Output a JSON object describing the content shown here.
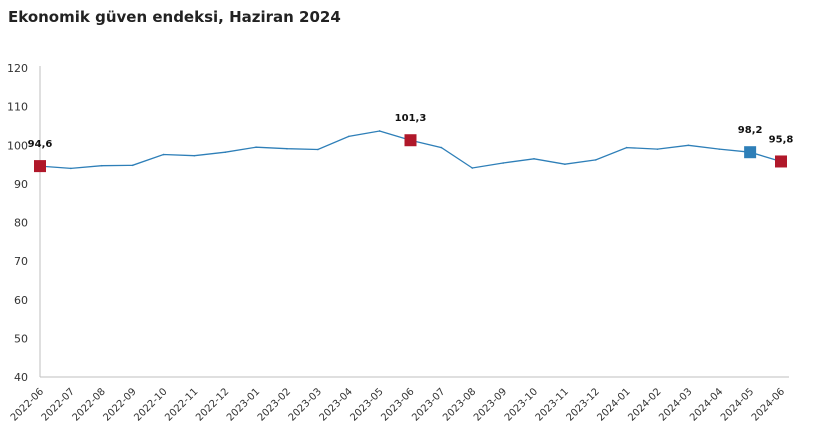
{
  "title": "Ekonomik güven endeksi, Haziran 2024",
  "colors": {
    "line": "#2e7fb8",
    "marker_highlight": "#b0182a",
    "marker_prev": "#2e7fb8",
    "axis": "#bfbfbf"
  },
  "chart_data": {
    "type": "line",
    "title": "Ekonomik güven endeksi, Haziran 2024",
    "xlabel": "",
    "ylabel": "",
    "ylim": [
      40,
      120
    ],
    "yticks": [
      40,
      50,
      60,
      70,
      80,
      90,
      100,
      110,
      120
    ],
    "grid": false,
    "categories": [
      "2022-06",
      "2022-07",
      "2022-08",
      "2022-09",
      "2022-10",
      "2022-11",
      "2022-12",
      "2023-01",
      "2023-02",
      "2023-03",
      "2023-04",
      "2023-05",
      "2023-06",
      "2023-07",
      "2023-08",
      "2023-09",
      "2023-10",
      "2023-11",
      "2023-12",
      "2024-01",
      "2024-02",
      "2024-03",
      "2024-04",
      "2024-05",
      "2024-06"
    ],
    "series": [
      {
        "values": [
          94.6,
          94.0,
          94.7,
          94.8,
          97.6,
          97.3,
          98.2,
          99.5,
          99.1,
          98.9,
          102.3,
          103.7,
          101.3,
          99.4,
          94.1,
          95.4,
          96.5,
          95.1,
          96.2,
          99.4,
          99.0,
          100.0,
          99.0,
          98.2,
          95.8
        ]
      }
    ],
    "annotations": [
      {
        "index": 0,
        "label": "94,6",
        "marker": "highlight"
      },
      {
        "index": 12,
        "label": "101,3",
        "marker": "highlight"
      },
      {
        "index": 23,
        "label": "98,2",
        "marker": "prev"
      },
      {
        "index": 24,
        "label": "95,8",
        "marker": "highlight"
      }
    ]
  }
}
